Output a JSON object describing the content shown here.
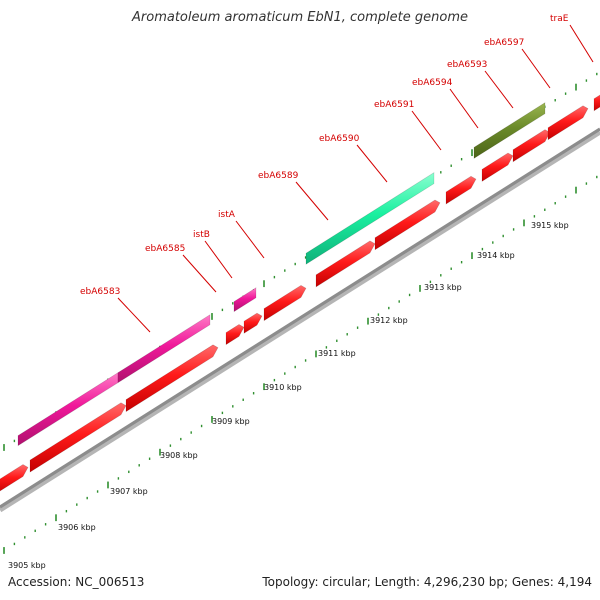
{
  "title": "Aromatoleum aromaticum EbN1, complete genome",
  "footer": {
    "accession": "Accession: NC_006513",
    "summary": "Topology: circular; Length: 4,296,230 bp; Genes: 4,194"
  },
  "colors": {
    "tick": "#2f8f2f",
    "backbone": "#8c8c8c",
    "cds": "#ff1a1a",
    "transposase": "#f0189a",
    "highlight_teal": "#1af0a0",
    "highlight_olive": "#6b8a2a",
    "label": "#d40000"
  },
  "kbp_ticks": [
    "3905 kbp",
    "3906 kbp",
    "3907 kbp",
    "3908 kbp",
    "3909 kbp",
    "3910 kbp",
    "3911 kbp",
    "3912 kbp",
    "3913 kbp",
    "3914 kbp",
    "3915 kbp"
  ],
  "genes": [
    {
      "name": "ebA6583"
    },
    {
      "name": "ebA6585"
    },
    {
      "name": "istB"
    },
    {
      "name": "istA"
    },
    {
      "name": "ebA6589"
    },
    {
      "name": "ebA6590"
    },
    {
      "name": "ebA6591"
    },
    {
      "name": "ebA6594"
    },
    {
      "name": "ebA6593"
    },
    {
      "name": "ebA6597"
    },
    {
      "name": "traE"
    }
  ]
}
